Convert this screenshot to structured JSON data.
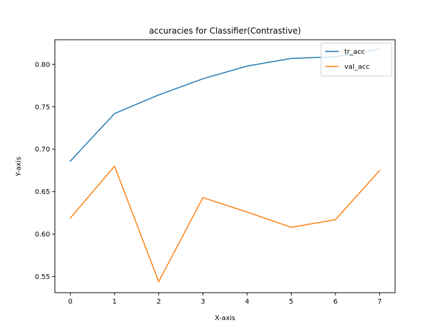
{
  "chart_data": {
    "type": "line",
    "title": "accuracies for Classifier(Contrastive)",
    "xlabel": "X-axis",
    "ylabel": "Y-axis",
    "x": [
      0,
      1,
      2,
      3,
      4,
      5,
      6,
      7
    ],
    "xlim": [
      -0.35,
      7.35
    ],
    "ylim": [
      0.531,
      0.829
    ],
    "xticks": [
      0,
      1,
      2,
      3,
      4,
      5,
      6,
      7
    ],
    "yticks": [
      0.55,
      0.6,
      0.65,
      0.7,
      0.75,
      0.8
    ],
    "grid": false,
    "legend_position": "top-right",
    "series": [
      {
        "name": "tr_acc",
        "color": "#1f77b4",
        "values": [
          0.686,
          0.742,
          0.764,
          0.783,
          0.798,
          0.807,
          0.809,
          0.818
        ]
      },
      {
        "name": "val_acc",
        "color": "#ff7f0e",
        "values": [
          0.619,
          0.68,
          0.544,
          0.643,
          0.626,
          0.608,
          0.617,
          0.675
        ]
      }
    ]
  }
}
